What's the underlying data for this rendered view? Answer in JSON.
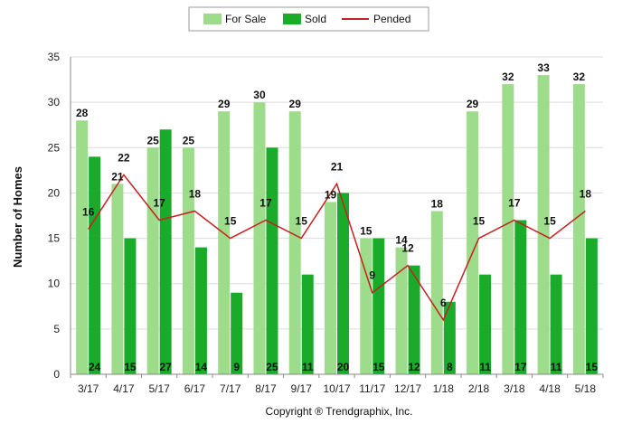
{
  "chart_data": {
    "type": "bar",
    "categories": [
      "3/17",
      "4/17",
      "5/17",
      "6/17",
      "7/17",
      "8/17",
      "9/17",
      "10/17",
      "11/17",
      "12/17",
      "1/18",
      "2/18",
      "3/18",
      "4/18",
      "5/18"
    ],
    "series": [
      {
        "name": "For Sale",
        "type": "bar",
        "color": "#9ddc8a",
        "values": [
          28,
          21,
          25,
          25,
          29,
          30,
          29,
          19,
          15,
          14,
          18,
          29,
          32,
          33,
          32
        ]
      },
      {
        "name": "Sold",
        "type": "bar",
        "color": "#1aab2a",
        "values": [
          24,
          15,
          27,
          14,
          9,
          25,
          11,
          20,
          15,
          12,
          8,
          11,
          17,
          11,
          15
        ]
      },
      {
        "name": "Pended",
        "type": "line",
        "color": "#c62020",
        "values": [
          16,
          22,
          17,
          18,
          15,
          17,
          15,
          21,
          9,
          12,
          6,
          15,
          17,
          15,
          18
        ]
      }
    ],
    "xlabel": "",
    "ylabel": "Number of Homes",
    "ylim": [
      0,
      35
    ],
    "yticks": [
      0,
      5,
      10,
      15,
      20,
      25,
      30,
      35
    ],
    "grid": true,
    "legend_position": "top-center"
  },
  "footer": {
    "copyright": "Copyright ® Trendgraphix, Inc."
  }
}
